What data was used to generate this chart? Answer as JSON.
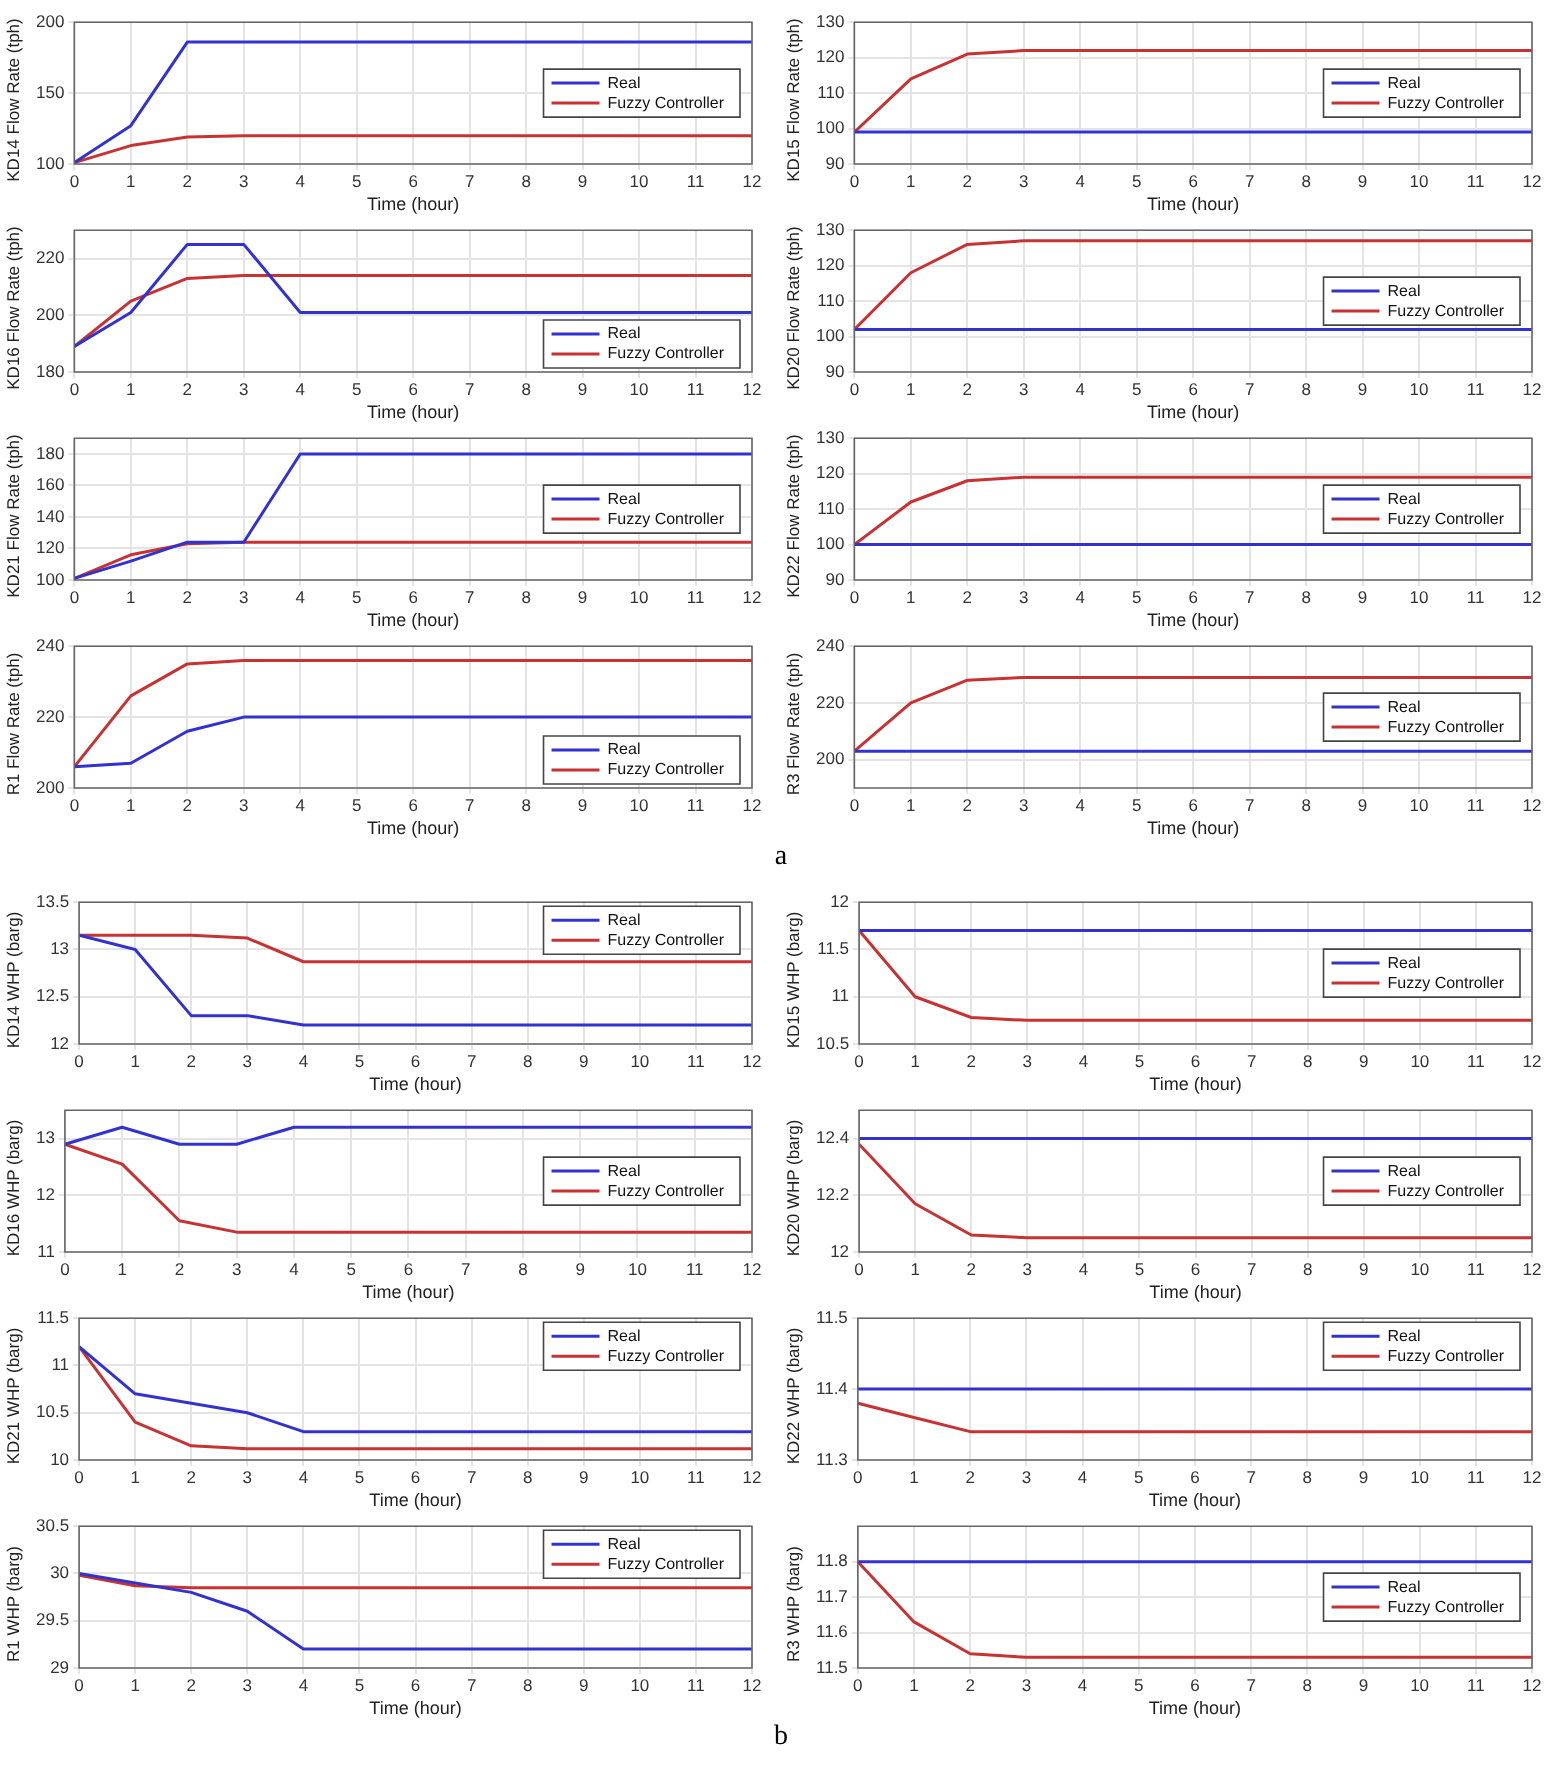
{
  "chart_data": [
    {
      "type": "line",
      "ylabel": "KD14 Flow Rate (tph)",
      "xlabel": "Time (hour)",
      "x": [
        0,
        1,
        2,
        3,
        4,
        5,
        6,
        7,
        8,
        9,
        10,
        11,
        12
      ],
      "xlim": [
        0,
        12
      ],
      "xticks": [
        0,
        1,
        2,
        3,
        4,
        5,
        6,
        7,
        8,
        9,
        10,
        11,
        12
      ],
      "ylim": [
        100,
        200
      ],
      "yticks": [
        100,
        150,
        200
      ],
      "grid": true,
      "legend": "right",
      "series": [
        {
          "name": "Real",
          "color": "#3232d0",
          "values": [
            101,
            127,
            186,
            186,
            186,
            186,
            186,
            186,
            186,
            186,
            186,
            186,
            186
          ]
        },
        {
          "name": "Fuzzy Controller",
          "color": "#c83232",
          "values": [
            101,
            113,
            119,
            120,
            120,
            120,
            120,
            120,
            120,
            120,
            120,
            120,
            120
          ]
        }
      ]
    },
    {
      "type": "line",
      "ylabel": "KD15 Flow Rate (tph)",
      "xlabel": "Time (hour)",
      "x": [
        0,
        1,
        2,
        3,
        4,
        5,
        6,
        7,
        8,
        9,
        10,
        11,
        12
      ],
      "xlim": [
        0,
        12
      ],
      "xticks": [
        0,
        1,
        2,
        3,
        4,
        5,
        6,
        7,
        8,
        9,
        10,
        11,
        12
      ],
      "ylim": [
        90,
        130
      ],
      "yticks": [
        90,
        100,
        110,
        120,
        130
      ],
      "grid": true,
      "legend": "right",
      "series": [
        {
          "name": "Real",
          "color": "#3232d0",
          "values": [
            99,
            99,
            99,
            99,
            99,
            99,
            99,
            99,
            99,
            99,
            99,
            99,
            99
          ]
        },
        {
          "name": "Fuzzy Controller",
          "color": "#c83232",
          "values": [
            99,
            114,
            121,
            122,
            122,
            122,
            122,
            122,
            122,
            122,
            122,
            122,
            122
          ]
        }
      ]
    },
    {
      "type": "line",
      "ylabel": "KD16 Flow Rate (tph)",
      "xlabel": "Time (hour)",
      "x": [
        0,
        1,
        2,
        3,
        4,
        5,
        6,
        7,
        8,
        9,
        10,
        11,
        12
      ],
      "xlim": [
        0,
        12
      ],
      "xticks": [
        0,
        1,
        2,
        3,
        4,
        5,
        6,
        7,
        8,
        9,
        10,
        11,
        12
      ],
      "ylim": [
        180,
        230
      ],
      "yticks": [
        180,
        200,
        220
      ],
      "grid": true,
      "legend": "bottom right",
      "series": [
        {
          "name": "Real",
          "color": "#3232d0",
          "values": [
            189,
            201,
            225,
            225,
            201,
            201,
            201,
            201,
            201,
            201,
            201,
            201,
            201
          ]
        },
        {
          "name": "Fuzzy Controller",
          "color": "#c83232",
          "values": [
            189,
            205,
            213,
            214,
            214,
            214,
            214,
            214,
            214,
            214,
            214,
            214,
            214
          ]
        }
      ]
    },
    {
      "type": "line",
      "ylabel": "KD20 Flow Rate (tph)",
      "xlabel": "Time (hour)",
      "x": [
        0,
        1,
        2,
        3,
        4,
        5,
        6,
        7,
        8,
        9,
        10,
        11,
        12
      ],
      "xlim": [
        0,
        12
      ],
      "xticks": [
        0,
        1,
        2,
        3,
        4,
        5,
        6,
        7,
        8,
        9,
        10,
        11,
        12
      ],
      "ylim": [
        90,
        130
      ],
      "yticks": [
        90,
        100,
        110,
        120,
        130
      ],
      "grid": true,
      "legend": "right",
      "series": [
        {
          "name": "Real",
          "color": "#3232d0",
          "values": [
            102,
            102,
            102,
            102,
            102,
            102,
            102,
            102,
            102,
            102,
            102,
            102,
            102
          ]
        },
        {
          "name": "Fuzzy Controller",
          "color": "#c83232",
          "values": [
            102,
            118,
            126,
            127,
            127,
            127,
            127,
            127,
            127,
            127,
            127,
            127,
            127
          ]
        }
      ]
    },
    {
      "type": "line",
      "ylabel": "KD21 Flow Rate (tph)",
      "xlabel": "Time (hour)",
      "x": [
        0,
        1,
        2,
        3,
        4,
        5,
        6,
        7,
        8,
        9,
        10,
        11,
        12
      ],
      "xlim": [
        0,
        12
      ],
      "xticks": [
        0,
        1,
        2,
        3,
        4,
        5,
        6,
        7,
        8,
        9,
        10,
        11,
        12
      ],
      "ylim": [
        100,
        190
      ],
      "yticks": [
        100,
        120,
        140,
        160,
        180
      ],
      "grid": true,
      "legend": "right",
      "series": [
        {
          "name": "Real",
          "color": "#3232d0",
          "values": [
            101,
            112,
            124,
            124,
            180,
            180,
            180,
            180,
            180,
            180,
            180,
            180,
            180
          ]
        },
        {
          "name": "Fuzzy Controller",
          "color": "#c83232",
          "values": [
            101,
            116,
            123,
            124,
            124,
            124,
            124,
            124,
            124,
            124,
            124,
            124,
            124
          ]
        }
      ]
    },
    {
      "type": "line",
      "ylabel": "KD22 Flow Rate (tph)",
      "xlabel": "Time (hour)",
      "x": [
        0,
        1,
        2,
        3,
        4,
        5,
        6,
        7,
        8,
        9,
        10,
        11,
        12
      ],
      "xlim": [
        0,
        12
      ],
      "xticks": [
        0,
        1,
        2,
        3,
        4,
        5,
        6,
        7,
        8,
        9,
        10,
        11,
        12
      ],
      "ylim": [
        90,
        130
      ],
      "yticks": [
        90,
        100,
        110,
        120,
        130
      ],
      "grid": true,
      "legend": "right",
      "series": [
        {
          "name": "Real",
          "color": "#3232d0",
          "values": [
            100,
            100,
            100,
            100,
            100,
            100,
            100,
            100,
            100,
            100,
            100,
            100,
            100
          ]
        },
        {
          "name": "Fuzzy Controller",
          "color": "#c83232",
          "values": [
            100,
            112,
            118,
            119,
            119,
            119,
            119,
            119,
            119,
            119,
            119,
            119,
            119
          ]
        }
      ]
    },
    {
      "type": "line",
      "ylabel": "R1 Flow Rate (tph)",
      "xlabel": "Time (hour)",
      "x": [
        0,
        1,
        2,
        3,
        4,
        5,
        6,
        7,
        8,
        9,
        10,
        11,
        12
      ],
      "xlim": [
        0,
        12
      ],
      "xticks": [
        0,
        1,
        2,
        3,
        4,
        5,
        6,
        7,
        8,
        9,
        10,
        11,
        12
      ],
      "ylim": [
        200,
        240
      ],
      "yticks": [
        200,
        220,
        240
      ],
      "grid": true,
      "legend": "bottom right",
      "series": [
        {
          "name": "Real",
          "color": "#3232d0",
          "values": [
            206,
            207,
            216,
            220,
            220,
            220,
            220,
            220,
            220,
            220,
            220,
            220,
            220
          ]
        },
        {
          "name": "Fuzzy Controller",
          "color": "#c83232",
          "values": [
            206,
            226,
            235,
            236,
            236,
            236,
            236,
            236,
            236,
            236,
            236,
            236,
            236
          ]
        }
      ]
    },
    {
      "type": "line",
      "ylabel": "R3 Flow Rate (tph)",
      "xlabel": "Time (hour)",
      "x": [
        0,
        1,
        2,
        3,
        4,
        5,
        6,
        7,
        8,
        9,
        10,
        11,
        12
      ],
      "xlim": [
        0,
        12
      ],
      "xticks": [
        0,
        1,
        2,
        3,
        4,
        5,
        6,
        7,
        8,
        9,
        10,
        11,
        12
      ],
      "ylim": [
        190,
        240
      ],
      "yticks": [
        200,
        220,
        240
      ],
      "grid": true,
      "legend": "right",
      "annotations": [
        "a"
      ],
      "series": [
        {
          "name": "Real",
          "color": "#3232d0",
          "values": [
            203,
            203,
            203,
            203,
            203,
            203,
            203,
            203,
            203,
            203,
            203,
            203,
            203
          ]
        },
        {
          "name": "Fuzzy Controller",
          "color": "#c83232",
          "values": [
            203,
            220,
            228,
            229,
            229,
            229,
            229,
            229,
            229,
            229,
            229,
            229,
            229
          ]
        }
      ]
    },
    {
      "type": "line",
      "ylabel": "KD14 WHP (barg)",
      "xlabel": "Time (hour)",
      "x": [
        0,
        1,
        2,
        3,
        4,
        5,
        6,
        7,
        8,
        9,
        10,
        11,
        12
      ],
      "xlim": [
        0,
        12
      ],
      "xticks": [
        0,
        1,
        2,
        3,
        4,
        5,
        6,
        7,
        8,
        9,
        10,
        11,
        12
      ],
      "ylim": [
        12,
        13.5
      ],
      "yticks": [
        12,
        12.5,
        13,
        13.5
      ],
      "grid": true,
      "legend": "top right",
      "series": [
        {
          "name": "Real",
          "color": "#3232d0",
          "values": [
            13.15,
            13.0,
            12.3,
            12.3,
            12.2,
            12.2,
            12.2,
            12.2,
            12.2,
            12.2,
            12.2,
            12.2,
            12.2
          ]
        },
        {
          "name": "Fuzzy Controller",
          "color": "#c83232",
          "values": [
            13.15,
            13.15,
            13.15,
            13.12,
            12.87,
            12.87,
            12.87,
            12.87,
            12.87,
            12.87,
            12.87,
            12.87,
            12.87
          ]
        }
      ]
    },
    {
      "type": "line",
      "ylabel": "KD15 WHP (barg)",
      "xlabel": "Time (hour)",
      "x": [
        0,
        1,
        2,
        3,
        4,
        5,
        6,
        7,
        8,
        9,
        10,
        11,
        12
      ],
      "xlim": [
        0,
        12
      ],
      "xticks": [
        0,
        1,
        2,
        3,
        4,
        5,
        6,
        7,
        8,
        9,
        10,
        11,
        12
      ],
      "ylim": [
        10.5,
        12
      ],
      "yticks": [
        10.5,
        11,
        11.5,
        12
      ],
      "grid": true,
      "legend": "right",
      "series": [
        {
          "name": "Real",
          "color": "#3232d0",
          "values": [
            11.7,
            11.7,
            11.7,
            11.7,
            11.7,
            11.7,
            11.7,
            11.7,
            11.7,
            11.7,
            11.7,
            11.7,
            11.7
          ]
        },
        {
          "name": "Fuzzy Controller",
          "color": "#c83232",
          "values": [
            11.7,
            11.0,
            10.78,
            10.75,
            10.75,
            10.75,
            10.75,
            10.75,
            10.75,
            10.75,
            10.75,
            10.75,
            10.75
          ]
        }
      ]
    },
    {
      "type": "line",
      "ylabel": "KD16 WHP (barg)",
      "xlabel": "Time (hour)",
      "x": [
        0,
        1,
        2,
        3,
        4,
        5,
        6,
        7,
        8,
        9,
        10,
        11,
        12
      ],
      "xlim": [
        0,
        12
      ],
      "xticks": [
        0,
        1,
        2,
        3,
        4,
        5,
        6,
        7,
        8,
        9,
        10,
        11,
        12
      ],
      "ylim": [
        11,
        13.5
      ],
      "yticks": [
        11,
        12,
        13
      ],
      "grid": true,
      "legend": "right",
      "series": [
        {
          "name": "Real",
          "color": "#3232d0",
          "values": [
            12.9,
            13.2,
            12.9,
            12.9,
            13.2,
            13.2,
            13.2,
            13.2,
            13.2,
            13.2,
            13.2,
            13.2,
            13.2
          ]
        },
        {
          "name": "Fuzzy Controller",
          "color": "#c83232",
          "values": [
            12.9,
            12.55,
            11.55,
            11.35,
            11.35,
            11.35,
            11.35,
            11.35,
            11.35,
            11.35,
            11.35,
            11.35,
            11.35
          ]
        }
      ]
    },
    {
      "type": "line",
      "ylabel": "KD20 WHP (barg)",
      "xlabel": "Time (hour)",
      "x": [
        0,
        1,
        2,
        3,
        4,
        5,
        6,
        7,
        8,
        9,
        10,
        11,
        12
      ],
      "xlim": [
        0,
        12
      ],
      "xticks": [
        0,
        1,
        2,
        3,
        4,
        5,
        6,
        7,
        8,
        9,
        10,
        11,
        12
      ],
      "ylim": [
        12,
        12.5
      ],
      "yticks": [
        12,
        12.2,
        12.4
      ],
      "grid": true,
      "legend": "right",
      "series": [
        {
          "name": "Real",
          "color": "#3232d0",
          "values": [
            12.4,
            12.4,
            12.4,
            12.4,
            12.4,
            12.4,
            12.4,
            12.4,
            12.4,
            12.4,
            12.4,
            12.4,
            12.4
          ]
        },
        {
          "name": "Fuzzy Controller",
          "color": "#c83232",
          "values": [
            12.38,
            12.17,
            12.06,
            12.05,
            12.05,
            12.05,
            12.05,
            12.05,
            12.05,
            12.05,
            12.05,
            12.05,
            12.05
          ]
        }
      ]
    },
    {
      "type": "line",
      "ylabel": "KD21 WHP (barg)",
      "xlabel": "Time (hour)",
      "x": [
        0,
        1,
        2,
        3,
        4,
        5,
        6,
        7,
        8,
        9,
        10,
        11,
        12
      ],
      "xlim": [
        0,
        12
      ],
      "xticks": [
        0,
        1,
        2,
        3,
        4,
        5,
        6,
        7,
        8,
        9,
        10,
        11,
        12
      ],
      "ylim": [
        10,
        11.5
      ],
      "yticks": [
        10,
        10.5,
        11,
        11.5
      ],
      "grid": true,
      "legend": "top right",
      "series": [
        {
          "name": "Real",
          "color": "#3232d0",
          "values": [
            11.2,
            10.7,
            10.6,
            10.5,
            10.3,
            10.3,
            10.3,
            10.3,
            10.3,
            10.3,
            10.3,
            10.3,
            10.3
          ]
        },
        {
          "name": "Fuzzy Controller",
          "color": "#c83232",
          "values": [
            11.2,
            10.4,
            10.15,
            10.12,
            10.12,
            10.12,
            10.12,
            10.12,
            10.12,
            10.12,
            10.12,
            10.12,
            10.12
          ]
        }
      ]
    },
    {
      "type": "line",
      "ylabel": "KD22 WHP (barg)",
      "xlabel": "Time (hour)",
      "x": [
        0,
        1,
        2,
        3,
        4,
        5,
        6,
        7,
        8,
        9,
        10,
        11,
        12
      ],
      "xlim": [
        0,
        12
      ],
      "xticks": [
        0,
        1,
        2,
        3,
        4,
        5,
        6,
        7,
        8,
        9,
        10,
        11,
        12
      ],
      "ylim": [
        11.3,
        11.5
      ],
      "yticks": [
        11.3,
        11.4,
        11.5
      ],
      "grid": true,
      "legend": "top right",
      "series": [
        {
          "name": "Real",
          "color": "#3232d0",
          "values": [
            11.4,
            11.4,
            11.4,
            11.4,
            11.4,
            11.4,
            11.4,
            11.4,
            11.4,
            11.4,
            11.4,
            11.4,
            11.4
          ]
        },
        {
          "name": "Fuzzy Controller",
          "color": "#c83232",
          "values": [
            11.38,
            11.36,
            11.34,
            11.34,
            11.34,
            11.34,
            11.34,
            11.34,
            11.34,
            11.34,
            11.34,
            11.34,
            11.34
          ]
        }
      ]
    },
    {
      "type": "line",
      "ylabel": "R1 WHP (barg)",
      "xlabel": "Time (hour)",
      "x": [
        0,
        1,
        2,
        3,
        4,
        5,
        6,
        7,
        8,
        9,
        10,
        11,
        12
      ],
      "xlim": [
        0,
        12
      ],
      "xticks": [
        0,
        1,
        2,
        3,
        4,
        5,
        6,
        7,
        8,
        9,
        10,
        11,
        12
      ],
      "ylim": [
        29,
        30.5
      ],
      "yticks": [
        29,
        29.5,
        30,
        30.5
      ],
      "grid": true,
      "legend": "top right",
      "series": [
        {
          "name": "Real",
          "color": "#3232d0",
          "values": [
            30.0,
            29.9,
            29.8,
            29.6,
            29.2,
            29.2,
            29.2,
            29.2,
            29.2,
            29.2,
            29.2,
            29.2,
            29.2
          ]
        },
        {
          "name": "Fuzzy Controller",
          "color": "#c83232",
          "values": [
            29.98,
            29.87,
            29.85,
            29.85,
            29.85,
            29.85,
            29.85,
            29.85,
            29.85,
            29.85,
            29.85,
            29.85,
            29.85
          ]
        }
      ]
    },
    {
      "type": "line",
      "ylabel": "R3 WHP (barg)",
      "xlabel": "Time (hour)",
      "x": [
        0,
        1,
        2,
        3,
        4,
        5,
        6,
        7,
        8,
        9,
        10,
        11,
        12
      ],
      "xlim": [
        0,
        12
      ],
      "xticks": [
        0,
        1,
        2,
        3,
        4,
        5,
        6,
        7,
        8,
        9,
        10,
        11,
        12
      ],
      "ylim": [
        11.5,
        11.9
      ],
      "yticks": [
        11.5,
        11.6,
        11.7,
        11.8
      ],
      "grid": true,
      "legend": "right",
      "annotations": [
        "b"
      ],
      "series": [
        {
          "name": "Real",
          "color": "#3232d0",
          "values": [
            11.8,
            11.8,
            11.8,
            11.8,
            11.8,
            11.8,
            11.8,
            11.8,
            11.8,
            11.8,
            11.8,
            11.8,
            11.8
          ]
        },
        {
          "name": "Fuzzy Controller",
          "color": "#c83232",
          "values": [
            11.8,
            11.63,
            11.54,
            11.53,
            11.53,
            11.53,
            11.53,
            11.53,
            11.53,
            11.53,
            11.53,
            11.53,
            11.53
          ]
        }
      ]
    }
  ]
}
